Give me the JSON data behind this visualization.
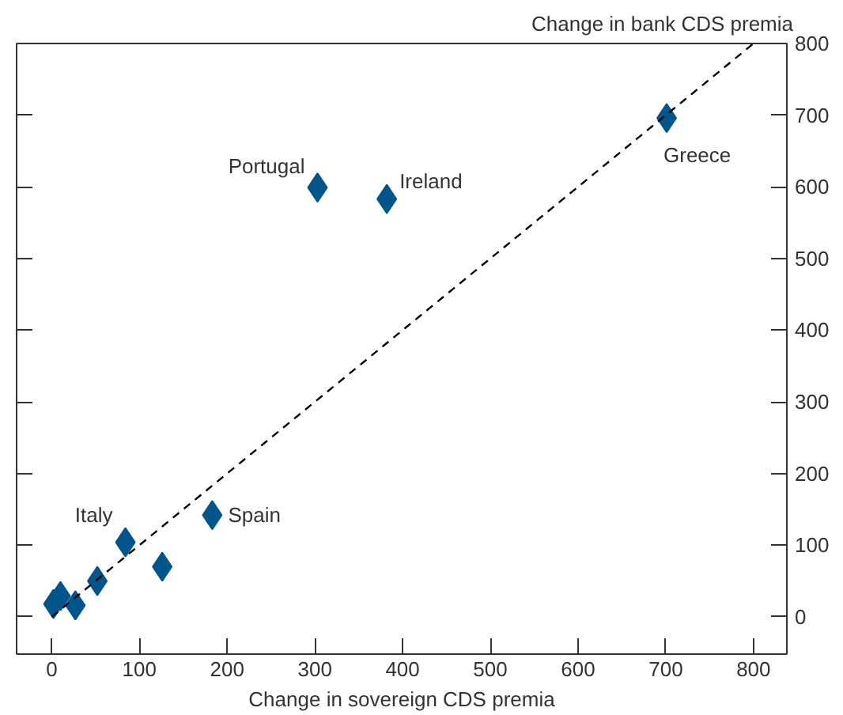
{
  "chart_data": {
    "type": "scatter",
    "xlabel": "Change in sovereign CDS premia",
    "ylabel": "Change in bank CDS premia",
    "xlim": [
      -40,
      838
    ],
    "ylim": [
      -52,
      800
    ],
    "xticks": [
      0,
      100,
      200,
      300,
      400,
      500,
      600,
      700,
      800
    ],
    "yticks": [
      0,
      100,
      200,
      300,
      400,
      500,
      600,
      700,
      800
    ],
    "marker": "diamond",
    "grid": false,
    "series": [
      {
        "color": "#00558b",
        "x": [
          701,
          303,
          382,
          183,
          84,
          126,
          52,
          27,
          10,
          2
        ],
        "values": [
          696,
          599,
          583,
          142,
          104,
          70,
          50,
          16,
          29,
          18
        ]
      },
      {
        "type": "line",
        "marker": "none",
        "color": "#000000",
        "line_style": "dashed",
        "x": [
          0,
          800
        ],
        "values": [
          0,
          800
        ]
      }
    ],
    "annotations": [
      {
        "text": "Greece",
        "x": 701,
        "y": 696
      },
      {
        "text": "Portugal",
        "x": 303,
        "y": 599
      },
      {
        "text": "Ireland",
        "x": 382,
        "y": 583
      },
      {
        "text": "Spain",
        "x": 183,
        "y": 142
      },
      {
        "text": "Italy",
        "x": 84,
        "y": 104
      }
    ]
  }
}
